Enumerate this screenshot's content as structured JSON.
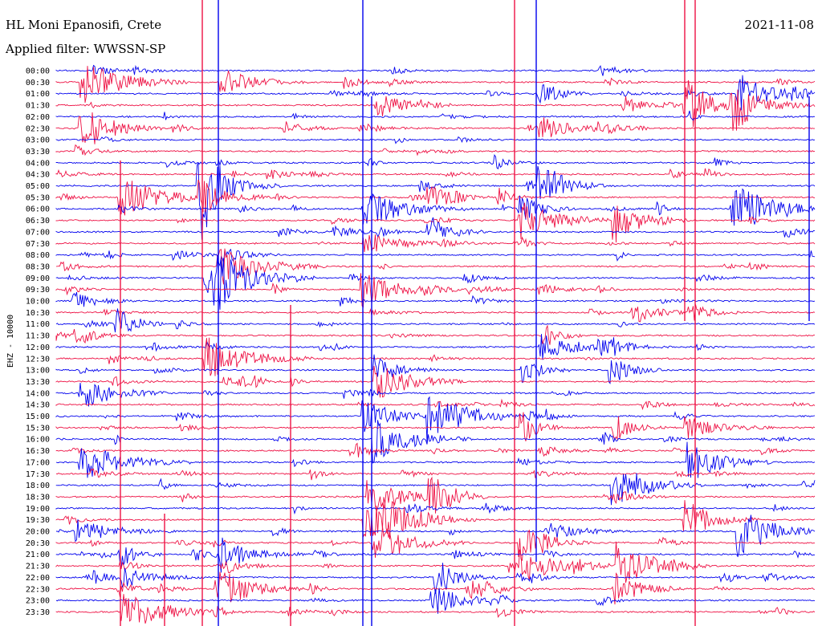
{
  "header": {
    "station": "HL Moni Epanosifi, Crete",
    "filter": "Applied filter: WWSSN-SP",
    "date": "2021-11-08"
  },
  "chart_data": {
    "type": "line",
    "title": "HL Moni Epanosifi, Crete",
    "ylabel": "EHZ - 10000",
    "date": "2021-11-08",
    "colors": [
      "#0000ee",
      "#ee1144"
    ],
    "row_labels": [
      "00:00",
      "00:30",
      "01:00",
      "01:30",
      "02:00",
      "02:30",
      "03:00",
      "03:30",
      "04:00",
      "04:30",
      "05:00",
      "05:30",
      "06:00",
      "06:30",
      "07:00",
      "07:30",
      "08:00",
      "08:30",
      "09:00",
      "09:30",
      "10:00",
      "10:30",
      "11:00",
      "11:30",
      "12:00",
      "12:30",
      "13:00",
      "13:30",
      "14:00",
      "14:30",
      "15:00",
      "15:30",
      "16:00",
      "16:30",
      "17:00",
      "17:30",
      "18:00",
      "18:30",
      "19:00",
      "19:30",
      "20:00",
      "20:30",
      "21:00",
      "21:30",
      "22:00",
      "22:30",
      "23:00",
      "23:30"
    ],
    "grid": false,
    "legend": "none"
  }
}
